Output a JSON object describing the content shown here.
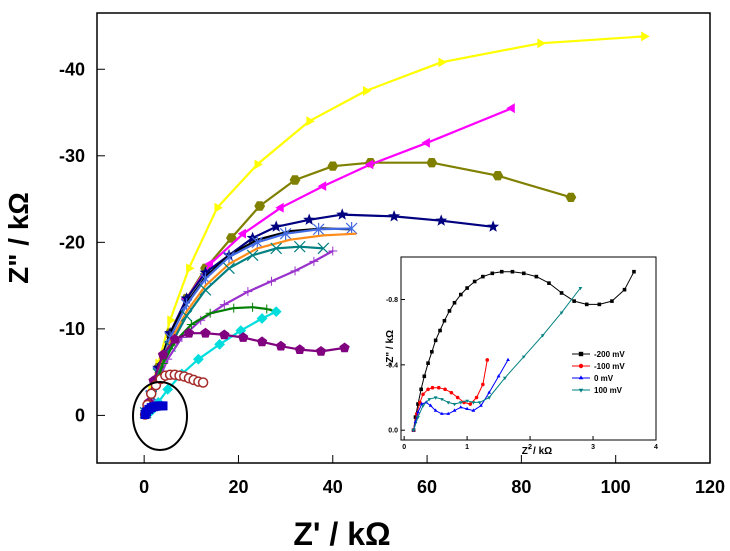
{
  "chart_data": [
    {
      "type": "line",
      "xlabel": "Z' / kΩ",
      "ylabel": "Z\" / kΩ",
      "xlim": [
        -10,
        120
      ],
      "ylim": [
        5.5,
        -46.5
      ],
      "x_ticks": [
        0,
        20,
        40,
        60,
        80,
        100,
        120
      ],
      "x_tick_labels": [
        "0",
        "20",
        "40",
        "60",
        "80",
        "100",
        "120"
      ],
      "y_ticks": [
        0,
        -10,
        -20,
        -30,
        -40
      ],
      "y_tick_labels": [
        "0",
        "-10",
        "-20",
        "-30",
        "-40"
      ],
      "grid": false,
      "series": [
        {
          "color": "#ffff00",
          "marker": "triangle-right",
          "x": [
            0.4,
            1.5,
            3,
            5.5,
            9.5,
            15.5,
            24,
            35,
            47,
            63,
            84,
            106
          ],
          "y": [
            -0.5,
            -3,
            -6,
            -11,
            -17,
            -24,
            -29,
            -34,
            -37.5,
            -40.8,
            -43,
            -43.8
          ]
        },
        {
          "color": "#808000",
          "marker": "hexagon",
          "x": [
            0.4,
            1.5,
            3,
            5.5,
            9,
            13,
            18.5,
            24.5,
            32,
            40,
            48,
            61,
            75,
            90.5
          ],
          "y": [
            -0.5,
            -2.5,
            -5.5,
            -9.5,
            -13.5,
            -17,
            -20.5,
            -24.2,
            -27.2,
            -28.8,
            -29.2,
            -29.2,
            -27.7,
            -25.2
          ]
        },
        {
          "color": "#ff00ff",
          "marker": "triangle-left",
          "x": [
            0.4,
            1.5,
            3,
            5.5,
            9,
            14,
            21,
            29,
            38,
            48,
            60,
            78
          ],
          "y": [
            -0.4,
            -2.5,
            -5.5,
            -9.5,
            -13.5,
            -17.5,
            -21,
            -24,
            -26.5,
            -29,
            -31.5,
            -35.5
          ]
        },
        {
          "color": "#000080",
          "marker": "star",
          "x": [
            0.4,
            1.5,
            3,
            5.5,
            9,
            13,
            18,
            23,
            28,
            35,
            42,
            53,
            63,
            74
          ],
          "y": [
            -0.4,
            -2.5,
            -5.5,
            -9.5,
            -13.5,
            -16.5,
            -18.5,
            -20.5,
            -21.8,
            -22.6,
            -23.2,
            -23,
            -22.5,
            -21.8
          ]
        },
        {
          "color": "#000000",
          "marker": "none",
          "x": [
            0.3,
            1.5,
            3,
            5.5,
            9,
            13,
            18,
            24,
            31,
            38,
            44
          ],
          "y": [
            -0.3,
            -2.5,
            -5.5,
            -9.5,
            -13,
            -16,
            -18.5,
            -20.3,
            -21.3,
            -21.6,
            -21.5
          ]
        },
        {
          "color": "#4169e1",
          "marker": "asterisk",
          "x": [
            0.3,
            1.5,
            3,
            5.5,
            9,
            13,
            18,
            24,
            30,
            37,
            44
          ],
          "y": [
            -0.3,
            -2.3,
            -5,
            -9,
            -12.8,
            -15.8,
            -18.3,
            -20,
            -21,
            -21.5,
            -21.6
          ]
        },
        {
          "color": "#ff8c1a",
          "marker": "none",
          "x": [
            0.3,
            1.5,
            3,
            5.5,
            9,
            13,
            18,
            24,
            31,
            38,
            45
          ],
          "y": [
            -0.3,
            -2.3,
            -5,
            -8.5,
            -12,
            -15,
            -17.5,
            -19.3,
            -20.3,
            -20.8,
            -21
          ]
        },
        {
          "color": "#008080",
          "marker": "cross",
          "x": [
            0.3,
            1.5,
            3,
            5.5,
            9,
            13,
            18,
            23,
            28,
            33,
            38
          ],
          "y": [
            -0.3,
            -2.2,
            -4.8,
            -8,
            -11.5,
            -14.5,
            -17,
            -18.5,
            -19.3,
            -19.5,
            -19.3
          ]
        },
        {
          "color": "#9932cc",
          "marker": "tick",
          "x": [
            0.3,
            1.5,
            3,
            5,
            8,
            12,
            17,
            22,
            27,
            32,
            36,
            40
          ],
          "y": [
            -0.2,
            -1.8,
            -4,
            -6.5,
            -9,
            -11,
            -12.8,
            -14.3,
            -15.5,
            -16.7,
            -17.8,
            -19
          ]
        },
        {
          "color": "#008000",
          "marker": "tick",
          "x": [
            0.3,
            1.2,
            2.5,
            4,
            6.5,
            10,
            14,
            19,
            23,
            26,
            28
          ],
          "y": [
            -0.2,
            -1.5,
            -3.5,
            -6,
            -8.5,
            -10.5,
            -11.8,
            -12.4,
            -12.5,
            -12.3,
            -12
          ]
        },
        {
          "color": "#00dddd",
          "marker": "diamond",
          "x": [
            1.5,
            3,
            5,
            8,
            11.5,
            16,
            20.5,
            25,
            28
          ],
          "y": [
            -0.5,
            -1.5,
            -3,
            -4.8,
            -6.5,
            -8.2,
            -9.8,
            -11.2,
            -12
          ]
        },
        {
          "color": "#800080",
          "marker": "pentagon",
          "x": [
            0.3,
            1,
            2,
            4,
            6.5,
            9.5,
            13,
            17,
            21,
            25,
            29,
            33,
            37.5,
            42.5
          ],
          "y": [
            -0.2,
            -1.5,
            -4,
            -7,
            -8.8,
            -9.5,
            -9.5,
            -9.3,
            -9,
            -8.5,
            -8,
            -7.6,
            -7.4,
            -7.8
          ]
        },
        {
          "color": "#a52a2a",
          "marker": "circle-open",
          "x": [
            0.2,
            0.7,
            1.5,
            2.5,
            3.5,
            4.5,
            5.5,
            6.5,
            7.5,
            8.5,
            9.5,
            10.5,
            11.5,
            12.5
          ],
          "y": [
            -0.1,
            -1.2,
            -2.5,
            -3.5,
            -4.2,
            -4.6,
            -4.7,
            -4.7,
            -4.6,
            -4.5,
            -4.3,
            -4.1,
            -3.9,
            -3.8
          ]
        },
        {
          "color": "#0000cd",
          "marker": "square",
          "x": [
            0.2,
            0.5,
            1,
            1.5,
            2,
            2.5,
            3,
            3.5,
            4
          ],
          "y": [
            -0.1,
            -0.4,
            -0.7,
            -0.9,
            -1,
            -1.05,
            -1.1,
            -1.1,
            -1.1
          ]
        }
      ]
    },
    {
      "type": "line",
      "xlabel": "Z' / kΩ",
      "ylabel": "-Z\" / kΩ",
      "xlim": [
        -0.05,
        4
      ],
      "ylim": [
        0.06,
        -1.06
      ],
      "x_ticks": [
        0,
        1,
        2,
        3,
        4
      ],
      "x_tick_labels": [
        "0",
        "1",
        "2",
        "3",
        "4"
      ],
      "y_ticks": [
        0,
        -0.4,
        -0.8
      ],
      "y_tick_labels": [
        "0.0",
        "-0.4",
        "-0.8"
      ],
      "grid": false,
      "legend": "center-right",
      "series": [
        {
          "name": "-200 mV",
          "color": "#000000",
          "marker": "square",
          "x": [
            0.15,
            0.18,
            0.22,
            0.27,
            0.32,
            0.38,
            0.44,
            0.5,
            0.57,
            0.64,
            0.72,
            0.8,
            0.9,
            1.0,
            1.12,
            1.25,
            1.4,
            1.55,
            1.72,
            1.9,
            2.1,
            2.3,
            2.5,
            2.7,
            2.9,
            3.1,
            3.3,
            3.5,
            3.65
          ],
          "y": [
            0,
            -0.08,
            -0.16,
            -0.25,
            -0.33,
            -0.41,
            -0.48,
            -0.55,
            -0.61,
            -0.67,
            -0.73,
            -0.78,
            -0.83,
            -0.87,
            -0.91,
            -0.94,
            -0.96,
            -0.97,
            -0.97,
            -0.96,
            -0.94,
            -0.9,
            -0.84,
            -0.79,
            -0.77,
            -0.77,
            -0.79,
            -0.86,
            -0.97
          ]
        },
        {
          "name": "-100 mV",
          "color": "#ff0000",
          "marker": "circle",
          "x": [
            0.15,
            0.2,
            0.25,
            0.3,
            0.38,
            0.45,
            0.55,
            0.65,
            0.75,
            0.85,
            0.95,
            1.05,
            1.15,
            1.25,
            1.32
          ],
          "y": [
            0,
            -0.1,
            -0.17,
            -0.22,
            -0.25,
            -0.26,
            -0.26,
            -0.25,
            -0.23,
            -0.2,
            -0.17,
            -0.16,
            -0.2,
            -0.28,
            -0.43
          ]
        },
        {
          "name": "0 mV",
          "color": "#0000ff",
          "marker": "triangle-up",
          "x": [
            0.15,
            0.18,
            0.22,
            0.28,
            0.35,
            0.42,
            0.5,
            0.6,
            0.7,
            0.8,
            0.9,
            1.0,
            1.1,
            1.22,
            1.35,
            1.5,
            1.65
          ],
          "y": [
            0,
            -0.05,
            -0.11,
            -0.16,
            -0.17,
            -0.15,
            -0.12,
            -0.1,
            -0.1,
            -0.12,
            -0.14,
            -0.13,
            -0.12,
            -0.15,
            -0.23,
            -0.33,
            -0.43
          ]
        },
        {
          "name": "100 mV",
          "color": "#008080",
          "marker": "triangle-down",
          "x": [
            0.15,
            0.22,
            0.3,
            0.4,
            0.5,
            0.6,
            0.7,
            0.8,
            0.9,
            1.0,
            1.1,
            1.2,
            1.35,
            1.6,
            1.9,
            2.2,
            2.5,
            2.8
          ],
          "y": [
            0,
            -0.08,
            -0.15,
            -0.19,
            -0.2,
            -0.19,
            -0.17,
            -0.16,
            -0.17,
            -0.18,
            -0.17,
            -0.17,
            -0.2,
            -0.32,
            -0.45,
            -0.58,
            -0.72,
            -0.87
          ]
        }
      ]
    }
  ]
}
